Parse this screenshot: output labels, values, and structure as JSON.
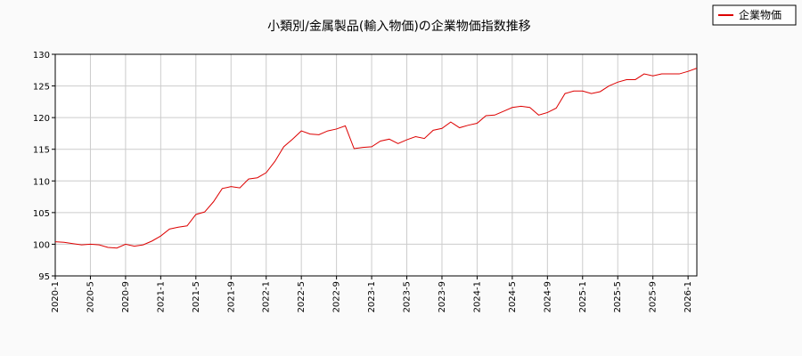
{
  "chart_data": {
    "type": "line",
    "title": "小類別/金属製品(輸入物価)の企業物価指数推移",
    "xlabel": "",
    "ylabel": "",
    "ylim": [
      95,
      130
    ],
    "yticks": [
      95,
      100,
      105,
      110,
      115,
      120,
      125,
      130
    ],
    "xlim": [
      "2020-01",
      "2026-02"
    ],
    "xticks": [
      "2020-1",
      "2020-5",
      "2020-9",
      "2021-1",
      "2021-5",
      "2021-9",
      "2022-1",
      "2022-5",
      "2022-9",
      "2023-1",
      "2023-5",
      "2023-9",
      "2024-1",
      "2024-5",
      "2024-9",
      "2025-1",
      "2025-5",
      "2025-9",
      "2026-1"
    ],
    "grid": true,
    "legend_position": "top-right",
    "x": [
      "2020-01",
      "2020-02",
      "2020-03",
      "2020-04",
      "2020-05",
      "2020-06",
      "2020-07",
      "2020-08",
      "2020-09",
      "2020-10",
      "2020-11",
      "2020-12",
      "2021-01",
      "2021-02",
      "2021-03",
      "2021-04",
      "2021-05",
      "2021-06",
      "2021-07",
      "2021-08",
      "2021-09",
      "2021-10",
      "2021-11",
      "2021-12",
      "2022-01",
      "2022-02",
      "2022-03",
      "2022-04",
      "2022-05",
      "2022-06",
      "2022-07",
      "2022-08",
      "2022-09",
      "2022-10",
      "2022-11",
      "2022-12",
      "2023-01",
      "2023-02",
      "2023-03",
      "2023-04",
      "2023-05",
      "2023-06",
      "2023-07",
      "2023-08",
      "2023-09",
      "2023-10",
      "2023-11",
      "2023-12",
      "2024-01",
      "2024-02",
      "2024-03",
      "2024-04",
      "2024-05",
      "2024-06",
      "2024-07",
      "2024-08",
      "2024-09",
      "2024-10",
      "2024-11",
      "2024-12",
      "2025-01",
      "2025-02",
      "2025-03",
      "2025-04",
      "2025-05",
      "2025-06",
      "2025-07",
      "2025-08",
      "2025-09",
      "2025-10",
      "2025-11",
      "2025-12",
      "2026-01",
      "2026-02"
    ],
    "series": [
      {
        "name": "企業物価",
        "color": "#dd0000",
        "values": [
          100.4,
          100.3,
          100.1,
          99.9,
          100.0,
          99.9,
          99.5,
          99.4,
          100.0,
          99.7,
          99.9,
          100.5,
          101.3,
          102.4,
          102.7,
          102.9,
          104.7,
          105.1,
          106.7,
          108.8,
          109.1,
          108.9,
          110.3,
          110.5,
          111.3,
          113.1,
          115.4,
          116.6,
          117.9,
          117.4,
          117.3,
          117.9,
          118.2,
          118.7,
          115.1,
          115.3,
          115.4,
          116.3,
          116.6,
          115.9,
          116.5,
          117.0,
          116.7,
          118.0,
          118.3,
          119.3,
          118.4,
          118.8,
          119.1,
          120.3,
          120.4,
          121.0,
          121.6,
          121.8,
          121.6,
          120.4,
          120.8,
          121.5,
          123.8,
          124.2,
          124.2,
          123.8,
          124.1,
          125.0,
          125.6,
          126.0,
          126.0,
          126.9,
          126.6,
          126.9,
          126.9,
          126.9,
          127.3,
          127.8
        ]
      }
    ]
  }
}
